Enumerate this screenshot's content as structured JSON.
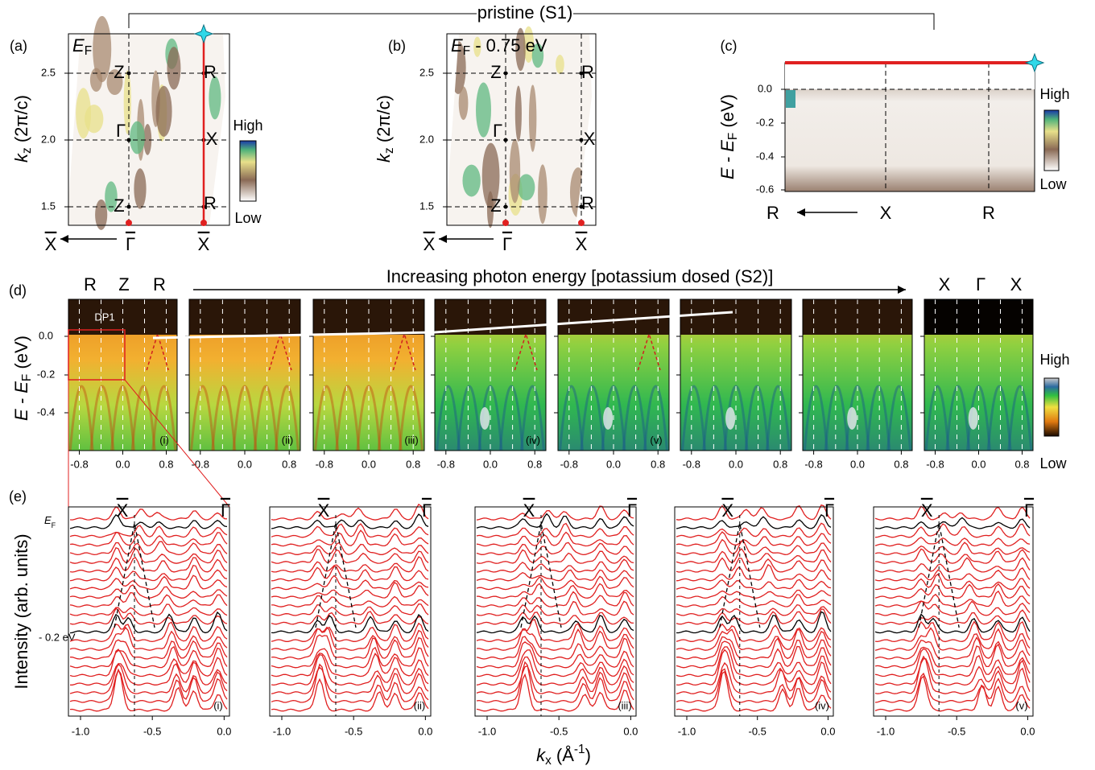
{
  "header": {
    "title": "pristine (S1)"
  },
  "panel_a": {
    "label": "(a)",
    "energy": {
      "main": "E",
      "sub": "F"
    },
    "y_axis": {
      "main": "k",
      "sub": "z",
      "rest": " (2π/c)"
    },
    "yticks": [
      "2.5",
      "2.0",
      "1.5"
    ],
    "points": [
      "Z",
      "R",
      "Γ",
      "X",
      "Z",
      "R"
    ],
    "x_points": [
      "X",
      "Γ",
      "X"
    ],
    "scale": [
      "High",
      "Low"
    ]
  },
  "panel_b": {
    "label": "(b)",
    "energy": {
      "main": "E",
      "sub": "F",
      "rest": " - 0.75 eV"
    },
    "y_axis": {
      "main": "k",
      "sub": "z",
      "rest": " (2π/c)"
    },
    "yticks": [
      "2.5",
      "2.0",
      "1.5"
    ],
    "points": [
      "Z",
      "R",
      "Γ",
      "X",
      "Z",
      "R"
    ],
    "x_points": [
      "X",
      "Γ",
      "X"
    ]
  },
  "panel_c": {
    "label": "(c)",
    "y_axis": {
      "main": "E - E",
      "sub": "F",
      "rest": " (eV)"
    },
    "yticks": [
      "0.0",
      "-0.2",
      "-0.4",
      "-0.6"
    ],
    "x_points": [
      "R",
      "X",
      "R"
    ],
    "scale": [
      "High",
      "Low"
    ]
  },
  "panel_d": {
    "label": "(d)",
    "note": "Increasing photon energy [potassium dosed (S2)]",
    "left_points": [
      "R",
      "Z",
      "R"
    ],
    "right_points": [
      "X",
      "Γ",
      "X"
    ],
    "y_axis": {
      "main": "E - E",
      "sub": "F",
      "rest": " (eV)"
    },
    "yticks": [
      "0.0",
      "-0.2",
      "-0.4"
    ],
    "xticks": [
      "-0.8",
      "0.0",
      "0.8"
    ],
    "tags": [
      "(i)",
      "(ii)",
      "(iii)",
      "(iv)",
      "(v)"
    ],
    "marker": "DP1",
    "scale": [
      "High",
      "Low"
    ]
  },
  "panel_e": {
    "label": "(e)",
    "y_axis": "Intensity (arb. units)",
    "x_axis": {
      "main": "k",
      "sub": "x",
      "rest": " (Å",
      "sup": "-1",
      "end": ")"
    },
    "xticks": [
      "-1.0",
      "-0.5",
      "0.0"
    ],
    "top_points": [
      "X",
      "Γ"
    ],
    "fermi": {
      "main": "E",
      "sub": "F"
    },
    "level": "- 0.2 eV",
    "tags": [
      "(i)",
      "(ii)",
      "(iii)",
      "(iv)",
      "(v)"
    ]
  }
}
